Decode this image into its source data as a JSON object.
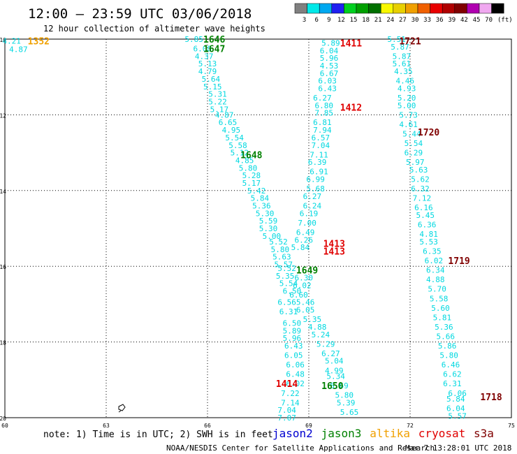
{
  "header": {
    "title": "12:00 – 23:59 UTC 03/06/2018",
    "subtitle": "12 hour collection of altimeter wave heights"
  },
  "legend": {
    "unit": "(ft)",
    "bins": [
      {
        "label": "3",
        "color": "#808080"
      },
      {
        "label": "6",
        "color": "#00e8e8"
      },
      {
        "label": "9",
        "color": "#00a8f0"
      },
      {
        "label": "12",
        "color": "#2020f0"
      },
      {
        "label": "15",
        "color": "#00d020"
      },
      {
        "label": "18",
        "color": "#00a000"
      },
      {
        "label": "21",
        "color": "#007000"
      },
      {
        "label": "24",
        "color": "#f8f800"
      },
      {
        "label": "27",
        "color": "#e8d000"
      },
      {
        "label": "30",
        "color": "#f0a000"
      },
      {
        "label": "33",
        "color": "#f06000"
      },
      {
        "label": "36",
        "color": "#e80000"
      },
      {
        "label": "39",
        "color": "#b00000"
      },
      {
        "label": "42",
        "color": "#800000"
      },
      {
        "label": "45",
        "color": "#b000b0"
      },
      {
        "label": "70",
        "color": "#f0a8f0"
      },
      {
        "label": "",
        "color": "#000000"
      }
    ]
  },
  "footer": {
    "note": "note: 1) Time is in UTC; 2) SWH is in feet",
    "credit": "NOAA/NESDIS Center for Satellite Applications and Research",
    "timestamp": "Mar  7 13:28:01 UTC 2018",
    "satellites": [
      {
        "name": "jason2",
        "color": "#0000d0"
      },
      {
        "name": "jason3",
        "color": "#008000"
      },
      {
        "name": "altika",
        "color": "#f0a000"
      },
      {
        "name": "cryosat",
        "color": "#e00000"
      },
      {
        "name": "s3a",
        "color": "#800000"
      }
    ]
  },
  "chart_data": {
    "type": "scatter",
    "xlim": [
      60,
      75
    ],
    "ylim": [
      -20,
      -10
    ],
    "xticks": [
      "60",
      "63",
      "66",
      "69",
      "72",
      "75"
    ],
    "yticks": [
      "-10",
      "-12",
      "-14",
      "-16",
      "-18",
      "-20"
    ],
    "grid": true,
    "value_color": "#00d8e0",
    "value_points": [
      {
        "x": 60.2,
        "y": -10.05,
        "v": "4.21"
      },
      {
        "x": 60.4,
        "y": -10.27,
        "v": "4.87"
      },
      {
        "x": 65.6,
        "y": -10.0,
        "v": "5.85"
      },
      {
        "x": 65.85,
        "y": -10.25,
        "v": "6.08"
      },
      {
        "x": 65.9,
        "y": -10.45,
        "v": "4.37"
      },
      {
        "x": 66.0,
        "y": -10.65,
        "v": "5.13"
      },
      {
        "x": 66.0,
        "y": -10.85,
        "v": "4.79"
      },
      {
        "x": 66.1,
        "y": -11.05,
        "v": "5.64"
      },
      {
        "x": 66.15,
        "y": -11.25,
        "v": "5.15"
      },
      {
        "x": 66.3,
        "y": -11.45,
        "v": "5.31"
      },
      {
        "x": 66.3,
        "y": -11.65,
        "v": "5.22"
      },
      {
        "x": 66.35,
        "y": -11.85,
        "v": "5.17"
      },
      {
        "x": 66.5,
        "y": -12.0,
        "v": "4.87"
      },
      {
        "x": 66.6,
        "y": -12.2,
        "v": "6.65"
      },
      {
        "x": 66.7,
        "y": -12.4,
        "v": "4.95"
      },
      {
        "x": 66.8,
        "y": -12.6,
        "v": "5.54"
      },
      {
        "x": 66.9,
        "y": -12.8,
        "v": "5.58"
      },
      {
        "x": 66.95,
        "y": -13.0,
        "v": "5.12"
      },
      {
        "x": 67.1,
        "y": -13.2,
        "v": "4.85"
      },
      {
        "x": 67.2,
        "y": -13.4,
        "v": "5.80"
      },
      {
        "x": 67.3,
        "y": -13.6,
        "v": "5.28"
      },
      {
        "x": 67.3,
        "y": -13.8,
        "v": "5.17"
      },
      {
        "x": 67.45,
        "y": -14.0,
        "v": "5.42"
      },
      {
        "x": 67.55,
        "y": -14.2,
        "v": "5.84"
      },
      {
        "x": 67.6,
        "y": -14.4,
        "v": "5.36"
      },
      {
        "x": 67.7,
        "y": -14.6,
        "v": "5.30"
      },
      {
        "x": 67.8,
        "y": -14.8,
        "v": "5.59"
      },
      {
        "x": 67.8,
        "y": -15.0,
        "v": "5.30"
      },
      {
        "x": 67.9,
        "y": -15.2,
        "v": "5.00"
      },
      {
        "x": 68.1,
        "y": -15.35,
        "v": "5.52"
      },
      {
        "x": 68.15,
        "y": -15.55,
        "v": "5.80"
      },
      {
        "x": 68.2,
        "y": -15.75,
        "v": "5.63"
      },
      {
        "x": 68.25,
        "y": -15.95,
        "v": "5.57"
      },
      {
        "x": 68.35,
        "y": -16.05,
        "v": "5.52"
      },
      {
        "x": 68.3,
        "y": -16.25,
        "v": "5.35"
      },
      {
        "x": 68.4,
        "y": -16.45,
        "v": "5.54"
      },
      {
        "x": 68.5,
        "y": -16.65,
        "v": "6.50"
      },
      {
        "x": 68.35,
        "y": -16.95,
        "v": "6.56"
      },
      {
        "x": 68.4,
        "y": -17.2,
        "v": "6.31"
      },
      {
        "x": 68.5,
        "y": -17.5,
        "v": "6.50"
      },
      {
        "x": 68.5,
        "y": -17.7,
        "v": "5.89"
      },
      {
        "x": 68.5,
        "y": -17.9,
        "v": "5.96"
      },
      {
        "x": 68.55,
        "y": -18.1,
        "v": "6.43"
      },
      {
        "x": 68.55,
        "y": -18.35,
        "v": "6.05"
      },
      {
        "x": 68.6,
        "y": -18.6,
        "v": "6.06"
      },
      {
        "x": 68.6,
        "y": -18.85,
        "v": "6.48"
      },
      {
        "x": 68.6,
        "y": -19.1,
        "v": "6.02"
      },
      {
        "x": 68.45,
        "y": -19.35,
        "v": "7.22"
      },
      {
        "x": 68.45,
        "y": -19.6,
        "v": "7.14"
      },
      {
        "x": 68.35,
        "y": -19.8,
        "v": "7.04"
      },
      {
        "x": 68.35,
        "y": -20.0,
        "v": "7.07"
      },
      {
        "x": 69.65,
        "y": -10.1,
        "v": "5.89"
      },
      {
        "x": 69.6,
        "y": -10.3,
        "v": "6.04"
      },
      {
        "x": 69.6,
        "y": -10.5,
        "v": "5.96"
      },
      {
        "x": 69.6,
        "y": -10.7,
        "v": "4.53"
      },
      {
        "x": 69.6,
        "y": -10.9,
        "v": "6.67"
      },
      {
        "x": 69.55,
        "y": -11.1,
        "v": "6.03"
      },
      {
        "x": 69.55,
        "y": -11.3,
        "v": "6.43"
      },
      {
        "x": 69.4,
        "y": -11.55,
        "v": "6.27"
      },
      {
        "x": 69.45,
        "y": -11.75,
        "v": "6.80"
      },
      {
        "x": 69.45,
        "y": -11.95,
        "v": "7.85"
      },
      {
        "x": 69.4,
        "y": -12.2,
        "v": "6.81"
      },
      {
        "x": 69.4,
        "y": -12.4,
        "v": "7.94"
      },
      {
        "x": 69.35,
        "y": -12.6,
        "v": "6.57"
      },
      {
        "x": 69.35,
        "y": -12.8,
        "v": "7.04"
      },
      {
        "x": 69.3,
        "y": -13.05,
        "v": "7.11"
      },
      {
        "x": 69.25,
        "y": -13.25,
        "v": "6.39"
      },
      {
        "x": 69.3,
        "y": -13.5,
        "v": "6.91"
      },
      {
        "x": 69.2,
        "y": -13.7,
        "v": "6.99"
      },
      {
        "x": 69.2,
        "y": -13.95,
        "v": "5.68"
      },
      {
        "x": 69.1,
        "y": -14.15,
        "v": "6.27"
      },
      {
        "x": 69.1,
        "y": -14.4,
        "v": "6.24"
      },
      {
        "x": 69.0,
        "y": -14.6,
        "v": "6.19"
      },
      {
        "x": 68.95,
        "y": -14.85,
        "v": "7.00"
      },
      {
        "x": 68.9,
        "y": -15.1,
        "v": "6.49"
      },
      {
        "x": 68.85,
        "y": -15.3,
        "v": "6.26"
      },
      {
        "x": 68.75,
        "y": -15.5,
        "v": "5.84"
      },
      {
        "x": 68.85,
        "y": -16.3,
        "v": "6.30"
      },
      {
        "x": 68.8,
        "y": -16.5,
        "v": "6.02"
      },
      {
        "x": 68.7,
        "y": -16.75,
        "v": "6.60"
      },
      {
        "x": 68.9,
        "y": -16.95,
        "v": "5.46"
      },
      {
        "x": 68.9,
        "y": -17.15,
        "v": "6.05"
      },
      {
        "x": 69.1,
        "y": -17.4,
        "v": "5.35"
      },
      {
        "x": 69.25,
        "y": -17.6,
        "v": "4.88"
      },
      {
        "x": 69.35,
        "y": -17.8,
        "v": "5.24"
      },
      {
        "x": 69.5,
        "y": -18.05,
        "v": "5.29"
      },
      {
        "x": 69.65,
        "y": -18.3,
        "v": "6.27"
      },
      {
        "x": 69.75,
        "y": -18.5,
        "v": "5.04"
      },
      {
        "x": 69.75,
        "y": -18.75,
        "v": "4.99"
      },
      {
        "x": 69.8,
        "y": -18.9,
        "v": "5.34"
      },
      {
        "x": 69.9,
        "y": -19.15,
        "v": "5.69"
      },
      {
        "x": 70.05,
        "y": -19.4,
        "v": "5.80"
      },
      {
        "x": 70.1,
        "y": -19.6,
        "v": "5.39"
      },
      {
        "x": 70.2,
        "y": -19.85,
        "v": "5.65"
      },
      {
        "x": 71.6,
        "y": -10.0,
        "v": "5.51"
      },
      {
        "x": 71.7,
        "y": -10.2,
        "v": "5.87"
      },
      {
        "x": 71.75,
        "y": -10.45,
        "v": "5.87"
      },
      {
        "x": 71.75,
        "y": -10.65,
        "v": "5.61"
      },
      {
        "x": 71.8,
        "y": -10.85,
        "v": "4.35"
      },
      {
        "x": 71.85,
        "y": -11.1,
        "v": "4.46"
      },
      {
        "x": 71.9,
        "y": -11.3,
        "v": "4.93"
      },
      {
        "x": 71.9,
        "y": -11.55,
        "v": "5.20"
      },
      {
        "x": 71.9,
        "y": -11.75,
        "v": "5.00"
      },
      {
        "x": 71.95,
        "y": -12.0,
        "v": "5.73"
      },
      {
        "x": 71.95,
        "y": -12.25,
        "v": "4.61"
      },
      {
        "x": 72.05,
        "y": -12.5,
        "v": "5.44"
      },
      {
        "x": 72.1,
        "y": -12.75,
        "v": "5.54"
      },
      {
        "x": 72.1,
        "y": -13.0,
        "v": "6.29"
      },
      {
        "x": 72.15,
        "y": -13.25,
        "v": "5.97"
      },
      {
        "x": 72.25,
        "y": -13.45,
        "v": "5.63"
      },
      {
        "x": 72.3,
        "y": -13.7,
        "v": "5.62"
      },
      {
        "x": 72.3,
        "y": -13.95,
        "v": "6.32"
      },
      {
        "x": 72.35,
        "y": -14.2,
        "v": "7.12"
      },
      {
        "x": 72.4,
        "y": -14.45,
        "v": "6.16"
      },
      {
        "x": 72.45,
        "y": -14.65,
        "v": "5.45"
      },
      {
        "x": 72.5,
        "y": -14.9,
        "v": "6.36"
      },
      {
        "x": 72.55,
        "y": -15.15,
        "v": "4.81"
      },
      {
        "x": 72.55,
        "y": -15.35,
        "v": "5.53"
      },
      {
        "x": 72.65,
        "y": -15.6,
        "v": "6.35"
      },
      {
        "x": 72.7,
        "y": -15.85,
        "v": "6.02"
      },
      {
        "x": 72.75,
        "y": -16.1,
        "v": "6.34"
      },
      {
        "x": 72.75,
        "y": -16.35,
        "v": "4.88"
      },
      {
        "x": 72.8,
        "y": -16.6,
        "v": "5.70"
      },
      {
        "x": 72.85,
        "y": -16.85,
        "v": "5.58"
      },
      {
        "x": 72.9,
        "y": -17.1,
        "v": "5.60"
      },
      {
        "x": 72.95,
        "y": -17.35,
        "v": "5.81"
      },
      {
        "x": 73.0,
        "y": -17.6,
        "v": "5.36"
      },
      {
        "x": 73.05,
        "y": -17.85,
        "v": "5.66"
      },
      {
        "x": 73.1,
        "y": -18.1,
        "v": "5.86"
      },
      {
        "x": 73.15,
        "y": -18.35,
        "v": "5.80"
      },
      {
        "x": 73.2,
        "y": -18.6,
        "v": "6.46"
      },
      {
        "x": 73.25,
        "y": -18.85,
        "v": "6.62"
      },
      {
        "x": 73.25,
        "y": -19.1,
        "v": "6.31"
      },
      {
        "x": 73.4,
        "y": -19.35,
        "v": "6.06"
      },
      {
        "x": 73.35,
        "y": -19.5,
        "v": "5.84"
      },
      {
        "x": 73.35,
        "y": -19.75,
        "v": "6.04"
      },
      {
        "x": 73.4,
        "y": -19.95,
        "v": "5.57"
      }
    ],
    "time_labels": [
      {
        "x": 61.0,
        "y": -10.05,
        "t": "1352",
        "color": "#f0a000"
      },
      {
        "x": 66.2,
        "y": -10.0,
        "t": "1646",
        "color": "#008000"
      },
      {
        "x": 66.2,
        "y": -10.25,
        "t": "1647",
        "color": "#008000"
      },
      {
        "x": 67.3,
        "y": -13.05,
        "t": "1648",
        "color": "#008000"
      },
      {
        "x": 68.95,
        "y": -16.1,
        "t": "1649",
        "color": "#008000"
      },
      {
        "x": 69.7,
        "y": -19.15,
        "t": "1650",
        "color": "#008000"
      },
      {
        "x": 70.25,
        "y": -10.1,
        "t": "1411",
        "color": "#e00000"
      },
      {
        "x": 70.25,
        "y": -11.8,
        "t": "1412",
        "color": "#e00000"
      },
      {
        "x": 69.75,
        "y": -15.4,
        "t": "1413",
        "color": "#e00000"
      },
      {
        "x": 69.75,
        "y": -15.6,
        "t": "1413",
        "color": "#e00000"
      },
      {
        "x": 68.35,
        "y": -19.1,
        "t": "1414",
        "color": "#e00000"
      },
      {
        "x": 72.0,
        "y": -10.05,
        "t": "1721",
        "color": "#800000"
      },
      {
        "x": 72.55,
        "y": -12.45,
        "t": "1720",
        "color": "#800000"
      },
      {
        "x": 73.45,
        "y": -15.85,
        "t": "1719",
        "color": "#800000"
      },
      {
        "x": 74.4,
        "y": -19.45,
        "t": "1718",
        "color": "#800000"
      }
    ]
  }
}
